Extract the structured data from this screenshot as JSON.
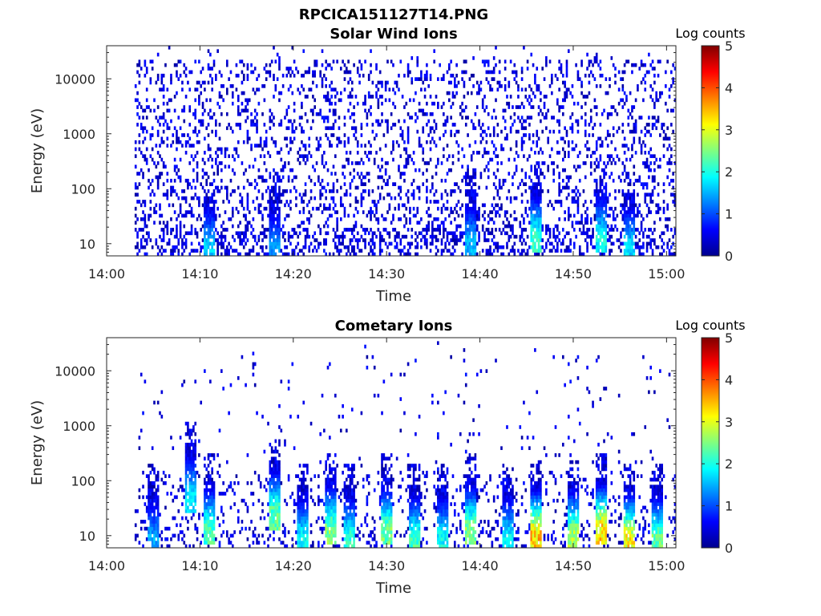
{
  "figure_title": "RPCICA151127T14.PNG",
  "chart_data": [
    {
      "type": "heatmap",
      "title": "Solar Wind Ions",
      "xlabel": "Time",
      "ylabel": "Energy (eV)",
      "x_ticks": [
        "14:00",
        "14:10",
        "14:20",
        "14:30",
        "14:40",
        "14:50",
        "15:00"
      ],
      "x_range": [
        "14:00",
        "15:01"
      ],
      "y_scale": "log",
      "y_ticks": [
        10,
        100,
        1000,
        10000
      ],
      "y_tick_labels": [
        "10",
        "100",
        "1000",
        "10000"
      ],
      "y_range": [
        6,
        40000
      ],
      "data_start": "14:03",
      "colorbar": {
        "label": "Log counts",
        "range": [
          0,
          5
        ],
        "ticks": [
          "0",
          "1",
          "2",
          "3",
          "4",
          "5"
        ],
        "colormap": "jet"
      },
      "description_of_values": "sparse counts mostly 0-1 log counts across 10 eV - 20 keV; brighter (log counts ~1.5-2.2) near 10-20 eV around 14:10-14:11, 14:17-14:19, 14:39, 14:46, 14:53, 14:56",
      "hot_spots": [
        {
          "time": "14:11",
          "energy_eV": 10,
          "log_counts": 1.7
        },
        {
          "time": "14:18",
          "energy_eV": 10,
          "log_counts": 1.4
        },
        {
          "time": "14:39",
          "energy_eV": 12,
          "log_counts": 1.6
        },
        {
          "time": "14:46",
          "energy_eV": 15,
          "log_counts": 2.2
        },
        {
          "time": "14:53",
          "energy_eV": 15,
          "log_counts": 2.0
        },
        {
          "time": "14:56",
          "energy_eV": 10,
          "log_counts": 1.8
        }
      ]
    },
    {
      "type": "heatmap",
      "title": "Cometary Ions",
      "xlabel": "Time",
      "ylabel": "Energy (eV)",
      "x_ticks": [
        "14:00",
        "14:10",
        "14:20",
        "14:30",
        "14:40",
        "14:50",
        "15:00"
      ],
      "x_range": [
        "14:00",
        "15:01"
      ],
      "y_scale": "log",
      "y_ticks": [
        10,
        100,
        1000,
        10000
      ],
      "y_tick_labels": [
        "10",
        "100",
        "1000",
        "10000"
      ],
      "y_range": [
        6,
        40000
      ],
      "data_start": "14:03",
      "colorbar": {
        "label": "Log counts",
        "range": [
          0,
          5
        ],
        "ticks": [
          "0",
          "1",
          "2",
          "3",
          "4",
          "5"
        ],
        "colormap": "jet"
      },
      "description_of_values": "sparse counts above 300 eV; stronger low-energy bursts below ~100 eV with peaks of log counts ~3.5 near 14:46-14:47, 14:53 and 14:56",
      "hot_spots": [
        {
          "time": "14:05",
          "energy_eV": 10,
          "log_counts": 1.5
        },
        {
          "time": "14:09",
          "energy_eV": 60,
          "log_counts": 1.8
        },
        {
          "time": "14:11",
          "energy_eV": 15,
          "log_counts": 2.3
        },
        {
          "time": "14:18",
          "energy_eV": 30,
          "log_counts": 2.4
        },
        {
          "time": "14:21",
          "energy_eV": 10,
          "log_counts": 2.0
        },
        {
          "time": "14:24",
          "energy_eV": 15,
          "log_counts": 2.6
        },
        {
          "time": "14:26",
          "energy_eV": 10,
          "log_counts": 2.2
        },
        {
          "time": "14:30",
          "energy_eV": 15,
          "log_counts": 2.5
        },
        {
          "time": "14:33",
          "energy_eV": 10,
          "log_counts": 2.3
        },
        {
          "time": "14:36",
          "energy_eV": 10,
          "log_counts": 2.0
        },
        {
          "time": "14:39",
          "energy_eV": 15,
          "log_counts": 2.6
        },
        {
          "time": "14:43",
          "energy_eV": 10,
          "log_counts": 2.0
        },
        {
          "time": "14:46",
          "energy_eV": 12,
          "log_counts": 3.5
        },
        {
          "time": "14:50",
          "energy_eV": 12,
          "log_counts": 2.8
        },
        {
          "time": "14:53",
          "energy_eV": 15,
          "log_counts": 3.4
        },
        {
          "time": "14:56",
          "energy_eV": 10,
          "log_counts": 3.3
        },
        {
          "time": "14:59",
          "energy_eV": 10,
          "log_counts": 2.5
        }
      ]
    }
  ]
}
